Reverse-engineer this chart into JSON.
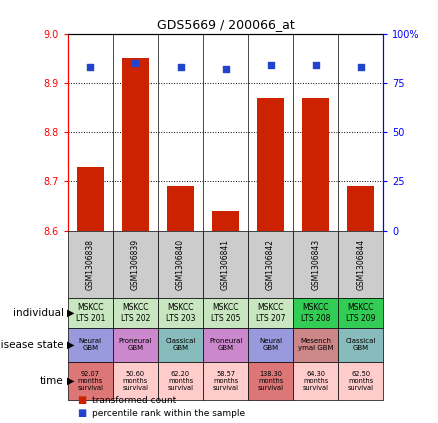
{
  "title": "GDS5669 / 200066_at",
  "samples": [
    "GSM1306838",
    "GSM1306839",
    "GSM1306840",
    "GSM1306841",
    "GSM1306842",
    "GSM1306843",
    "GSM1306844"
  ],
  "transformed_count": [
    8.73,
    8.95,
    8.69,
    8.64,
    8.87,
    8.87,
    8.69
  ],
  "percentile_rank": [
    83,
    85,
    83,
    82,
    84,
    84,
    83
  ],
  "ylim_left": [
    8.6,
    9.0
  ],
  "ylim_right": [
    0,
    100
  ],
  "yticks_left": [
    8.6,
    8.7,
    8.8,
    8.9,
    9.0
  ],
  "yticks_right": [
    0,
    25,
    50,
    75,
    100
  ],
  "individual_labels": [
    "MSKCC\nLTS 201",
    "MSKCC\nLTS 202",
    "MSKCC\nLTS 203",
    "MSKCC\nLTS 205",
    "MSKCC\nLTS 207",
    "MSKCC\nLTS 208",
    "MSKCC\nLTS 209"
  ],
  "individual_colors": [
    "#c8e6c0",
    "#c8e6c0",
    "#c8e6c0",
    "#c8e6c0",
    "#c8e6c0",
    "#33cc55",
    "#33cc55"
  ],
  "disease_state_labels": [
    "Neural\nGBM",
    "Proneural\nGBM",
    "Classical\nGBM",
    "Proneural\nGBM",
    "Neural\nGBM",
    "Mesench\nymal GBM",
    "Classical\nGBM"
  ],
  "disease_state_colors": [
    "#9999dd",
    "#cc88cc",
    "#88bbbb",
    "#cc88cc",
    "#9999dd",
    "#cc8888",
    "#88bbbb"
  ],
  "time_labels": [
    "92.07\nmonths\nsurvival",
    "50.60\nmonths\nsurvival",
    "62.20\nmonths\nsurvival",
    "58.57\nmonths\nsurvival",
    "138.30\nmonths\nsurvival",
    "64.30\nmonths\nsurvival",
    "62.50\nmonths\nsurvival"
  ],
  "time_colors": [
    "#dd7777",
    "#ffcccc",
    "#ffcccc",
    "#ffcccc",
    "#dd7777",
    "#ffcccc",
    "#ffcccc"
  ],
  "bar_color": "#cc2200",
  "dot_color": "#2244cc",
  "legend_transformed": "transformed count",
  "legend_percentile": "percentile rank within the sample",
  "gsm_bg": "#cccccc"
}
